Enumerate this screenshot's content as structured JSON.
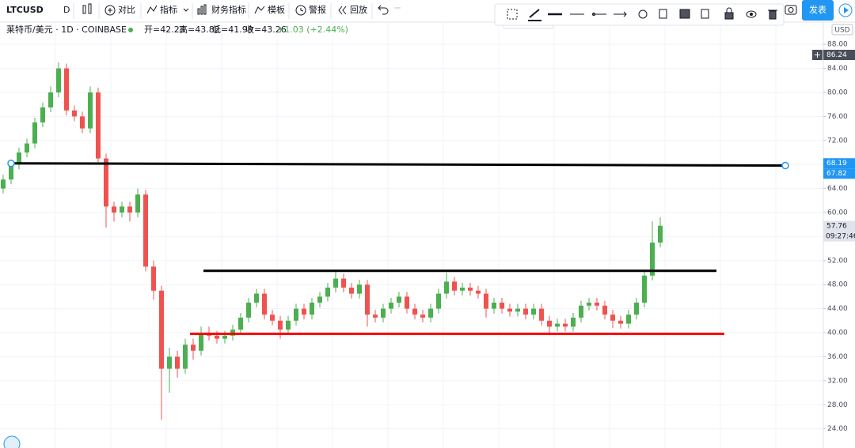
{
  "toolbar": {
    "symbol": "LTCUSD",
    "interval": "D",
    "compare": "对比",
    "indicators": "指标",
    "financials": "财务指标",
    "templates": "模板",
    "alert": "警报",
    "replay": "回放",
    "publish": "发表"
  },
  "legend": {
    "title": "莱特币/美元 · 1D · COINBASE",
    "open": "开=42.23",
    "high": "高=43.82",
    "low": "低=41.99",
    "close": "收=43.26",
    "change": "+1.03 (+2.44%)"
  },
  "chart_data": {
    "type": "candlestick",
    "up_color": "#4caf50",
    "down_color": "#ef5350",
    "xlim": [
      -0.4,
      103.6
    ],
    "ylim": [
      20.8,
      91.7
    ],
    "yticks": [
      {
        "value": 24,
        "label": "24.00"
      },
      {
        "value": 28,
        "label": "28.00"
      },
      {
        "value": 32,
        "label": "32.00"
      },
      {
        "value": 36,
        "label": "36.00"
      },
      {
        "value": 40,
        "label": "40.00"
      },
      {
        "value": 44,
        "label": "44.00"
      },
      {
        "value": 48,
        "label": "48.00"
      },
      {
        "value": 52,
        "label": "52.00"
      },
      {
        "value": 56,
        "label": "56.00"
      },
      {
        "value": 60,
        "label": "60.00"
      },
      {
        "value": 64,
        "label": "64.00"
      },
      {
        "value": 68,
        "label": "68.00"
      },
      {
        "value": 72,
        "label": "72.00"
      },
      {
        "value": 76,
        "label": "76.00"
      },
      {
        "value": 80,
        "label": "80.00"
      },
      {
        "value": 84,
        "label": "84.00"
      },
      {
        "value": 88,
        "label": "88.00"
      }
    ],
    "grid": true,
    "currency": "USD",
    "open": [
      64,
      65.5,
      68,
      70,
      71.5,
      75,
      77.5,
      80,
      84,
      77,
      76,
      74,
      80,
      69,
      61,
      60,
      61,
      60,
      63,
      51,
      47,
      34,
      36,
      34,
      38,
      37,
      40,
      39.5,
      39,
      39.5,
      40.5,
      42.5,
      45,
      46.5,
      43,
      42,
      40.5,
      42,
      44,
      43,
      45,
      46,
      47.5,
      49,
      47.5,
      46.5,
      48,
      43,
      42.5,
      44,
      45,
      46,
      44,
      43,
      42.5,
      44,
      46.5,
      48.5,
      47,
      47.5,
      47,
      46.5,
      44,
      45,
      44,
      43.5,
      44,
      43,
      44,
      42,
      41,
      41.5,
      41,
      42.5,
      44.5,
      45,
      44.5,
      43,
      42,
      41.5,
      43,
      45,
      49.5,
      55
    ],
    "high": [
      66.3,
      68.8,
      70.8,
      72.3,
      75.8,
      78.3,
      81,
      85,
      84.8,
      77.8,
      76.8,
      81,
      80.8,
      69.8,
      61.8,
      61.8,
      61.8,
      64,
      63.8,
      52,
      47.8,
      37.5,
      37,
      39,
      39,
      41,
      41,
      40.3,
      40.3,
      41.3,
      43.3,
      45.8,
      47.3,
      47.3,
      43.8,
      42.8,
      42.8,
      44.8,
      44.8,
      45.8,
      46.8,
      48.3,
      50.5,
      49.8,
      48.3,
      48.8,
      48.8,
      43.8,
      44.8,
      45.8,
      46.8,
      46.8,
      44.8,
      43.8,
      44.8,
      47.3,
      50,
      49.3,
      48.3,
      48.3,
      47.8,
      47.3,
      45.8,
      45.8,
      44.8,
      44.8,
      44.8,
      44.8,
      44.8,
      42.8,
      42.3,
      42.3,
      43.3,
      45.3,
      45.8,
      45.8,
      45.3,
      43.8,
      42.8,
      43.8,
      45.8,
      50.3,
      58.5,
      59.2
    ],
    "low": [
      63.2,
      64.7,
      67.2,
      69.2,
      70.7,
      74.2,
      76.7,
      79.2,
      76.2,
      75.2,
      73.2,
      73.2,
      68.2,
      57.5,
      58.5,
      59.2,
      58.5,
      59.2,
      50.2,
      45.5,
      25.5,
      30,
      32.5,
      33.2,
      35.5,
      36.2,
      38.7,
      38.2,
      38.2,
      38.7,
      39.7,
      41.7,
      44.2,
      42.2,
      41.2,
      39,
      39.7,
      41.2,
      42.2,
      42.2,
      44.2,
      45.2,
      46.7,
      46.7,
      45.7,
      45.7,
      41,
      41.7,
      41.7,
      43.2,
      44.2,
      43.2,
      42.2,
      41.7,
      41.7,
      43.2,
      45.7,
      46.2,
      46.2,
      46.2,
      45.7,
      42.5,
      43.2,
      43.2,
      42.7,
      42.7,
      42.2,
      42.2,
      41.2,
      40,
      40.2,
      40.2,
      40.2,
      41.7,
      43.7,
      43.7,
      42.2,
      40.8,
      40.7,
      40.7,
      42.2,
      44.2,
      48.7,
      54.2
    ],
    "close": [
      65.5,
      68,
      70,
      71.5,
      75,
      77.5,
      80,
      84,
      77,
      76,
      74,
      80,
      69,
      61,
      60,
      61,
      60,
      63,
      51,
      47,
      34,
      36,
      34,
      38,
      37,
      40,
      39.5,
      39,
      39.5,
      40.5,
      42.5,
      45,
      46.5,
      43,
      42,
      40.5,
      42,
      44,
      43,
      45,
      46,
      47.5,
      49,
      47.5,
      46.5,
      48,
      43,
      42.5,
      44,
      45,
      46,
      44,
      43,
      42.5,
      44,
      46.5,
      48.5,
      47,
      47.5,
      47,
      46.5,
      44,
      45,
      44,
      43.5,
      44,
      43,
      44,
      42,
      41,
      41.5,
      41,
      42.5,
      44.5,
      45,
      44.5,
      43,
      42,
      41.5,
      43,
      45,
      49.5,
      55,
      57.8
    ],
    "drawings": [
      {
        "x": [
          1,
          98.8
        ],
        "y": [
          68.19,
          67.82
        ],
        "color": "#000000",
        "selected": true
      },
      {
        "x": [
          25.3,
          90.1
        ],
        "y": [
          50.3,
          50.3
        ],
        "color": "#000000",
        "selected": false
      },
      {
        "x": [
          23.6,
          91.1
        ],
        "y": [
          39.8,
          39.8
        ],
        "color": "#ff0000",
        "selected": false
      }
    ],
    "price_markers": [
      {
        "value": 86.24,
        "color": "#4a4e59",
        "text_color": "#ffffff"
      },
      {
        "value": 68.19,
        "color": "#2196f3",
        "text_color": "#ffffff"
      },
      {
        "value": 67.82,
        "color": "#2196f3",
        "text_color": "#ffffff"
      },
      {
        "value": 57.76,
        "color": "#e0e3eb",
        "text_color": "#131722"
      }
    ],
    "countdown": "09:27:46"
  }
}
